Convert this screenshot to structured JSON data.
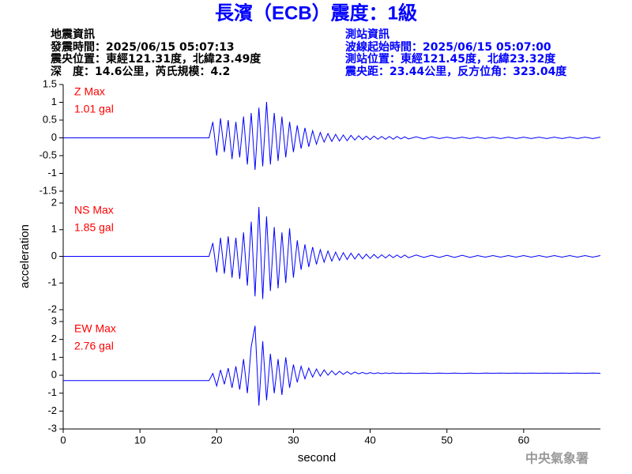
{
  "header": {
    "title": "長濱（ECB）震度：1級",
    "left": [
      "地震資訊",
      "發震時間：2025/06/15 05:07:13",
      "震央位置：東經121.31度，北緯23.49度",
      "深　度：14.6公里，芮氏規模：4.2"
    ],
    "right": [
      "測站資訊",
      "波線起始時間：2025/06/15 05:07:00",
      "測站位置：東經121.45度，北緯23.32度",
      "震央距：23.44公里，反方位角：323.04度"
    ]
  },
  "footer": "中央氣象署",
  "chart_data": [
    {
      "type": "line",
      "annotations": [
        "Z Max",
        "1.01 gal"
      ],
      "color": "#0000ff",
      "xlim": [
        0,
        70
      ],
      "ylim": [
        -1.5,
        1.5
      ],
      "yticks": [
        -1.5,
        -1,
        -0.5,
        0,
        0.5,
        1,
        1.5
      ],
      "x": [
        0,
        10,
        19,
        19.5,
        20,
        20.5,
        21,
        21.5,
        22,
        22.5,
        23,
        23.5,
        24,
        24.5,
        25,
        25.5,
        26,
        26.5,
        27,
        27.5,
        28,
        28.5,
        29,
        29.5,
        30,
        30.5,
        31,
        31.5,
        32,
        32.5,
        33,
        33.5,
        34,
        34.5,
        35,
        35.5,
        36,
        36.5,
        37,
        37.5,
        38,
        38.5,
        39,
        39.5,
        40,
        40.5,
        41,
        41.5,
        42,
        42.5,
        43,
        43.5,
        44,
        44.5,
        45,
        46,
        47,
        48,
        49,
        50,
        51,
        52,
        53,
        54,
        55,
        56,
        57,
        58,
        59,
        60,
        61,
        62,
        63,
        64,
        65,
        66,
        67,
        68,
        69,
        70
      ],
      "values": [
        0,
        0,
        0,
        0.45,
        -0.5,
        0.55,
        -0.4,
        0.5,
        -0.6,
        0.45,
        -0.55,
        0.6,
        -0.75,
        0.7,
        -0.9,
        0.85,
        -0.8,
        1.01,
        -0.75,
        0.7,
        -0.65,
        0.6,
        -0.55,
        0.45,
        -0.4,
        0.35,
        -0.3,
        0.28,
        -0.25,
        0.2,
        -0.18,
        0.15,
        -0.12,
        0.12,
        -0.1,
        0.1,
        -0.09,
        0.08,
        -0.08,
        0.07,
        -0.06,
        0.06,
        -0.05,
        0.05,
        -0.05,
        0.05,
        -0.04,
        0.04,
        -0.04,
        0.04,
        -0.04,
        0.04,
        -0.03,
        0.03,
        -0.03,
        0.03,
        -0.03,
        0.03,
        -0.02,
        0.02,
        -0.02,
        0.02,
        -0.02,
        0.02,
        -0.02,
        0.02,
        -0.02,
        0.02,
        -0.02,
        0.02,
        -0.02,
        0.02,
        -0.02,
        0.02,
        -0.02,
        0.02,
        -0.02,
        0.02,
        -0.02,
        0.02
      ]
    },
    {
      "type": "line",
      "annotations": [
        "NS Max",
        "1.85 gal"
      ],
      "color": "#0000ff",
      "ylabel": "acceleration",
      "xlim": [
        0,
        70
      ],
      "ylim": [
        -2,
        2
      ],
      "yticks": [
        -2,
        -1,
        0,
        1,
        2
      ],
      "x": [
        0,
        10,
        19,
        19.5,
        20,
        20.5,
        21,
        21.5,
        22,
        22.5,
        23,
        23.5,
        24,
        24.5,
        25,
        25.5,
        26,
        26.5,
        27,
        27.5,
        28,
        28.5,
        29,
        29.5,
        30,
        30.5,
        31,
        31.5,
        32,
        32.5,
        33,
        33.5,
        34,
        34.5,
        35,
        35.5,
        36,
        36.5,
        37,
        37.5,
        38,
        38.5,
        39,
        39.5,
        40,
        40.5,
        41,
        41.5,
        42,
        42.5,
        43,
        43.5,
        44,
        44.5,
        45,
        46,
        47,
        48,
        49,
        50,
        51,
        52,
        53,
        54,
        55,
        56,
        57,
        58,
        59,
        60,
        61,
        62,
        63,
        64,
        65,
        66,
        67,
        68,
        69,
        70
      ],
      "values": [
        0,
        0,
        0,
        0.5,
        -0.6,
        0.7,
        -0.65,
        0.75,
        -0.8,
        0.7,
        -0.85,
        0.9,
        -1.1,
        1.3,
        -1.5,
        1.85,
        -1.6,
        1.5,
        -1.3,
        1.1,
        -1.2,
        0.9,
        -1.0,
        1.05,
        -0.8,
        0.6,
        -0.5,
        0.45,
        -0.4,
        0.35,
        -0.3,
        0.25,
        -0.22,
        0.2,
        -0.18,
        0.16,
        -0.15,
        0.14,
        -0.12,
        0.12,
        -0.1,
        0.1,
        -0.09,
        0.08,
        -0.08,
        0.07,
        -0.07,
        0.06,
        -0.06,
        0.06,
        -0.05,
        0.05,
        -0.05,
        0.05,
        -0.05,
        0.05,
        -0.04,
        0.04,
        -0.04,
        0.04,
        -0.04,
        0.04,
        -0.04,
        0.03,
        -0.03,
        0.03,
        -0.03,
        0.03,
        -0.03,
        0.03,
        -0.03,
        0.03,
        -0.03,
        0.03,
        -0.03,
        0.03,
        -0.03,
        0.03,
        -0.03,
        0.03
      ]
    },
    {
      "type": "line",
      "annotations": [
        "EW Max",
        "2.76 gal"
      ],
      "color": "#0000ff",
      "xlabel": "second",
      "xlim": [
        0,
        70
      ],
      "xticks": [
        0,
        10,
        20,
        30,
        40,
        50,
        60
      ],
      "ylim": [
        -3,
        3
      ],
      "yticks": [
        -3,
        -2,
        -1,
        0,
        1,
        2,
        3
      ],
      "x": [
        0,
        10,
        19,
        19.5,
        20,
        20.5,
        21,
        21.5,
        22,
        22.5,
        23,
        23.5,
        24,
        24.5,
        25,
        25.5,
        26,
        26.5,
        27,
        27.5,
        28,
        28.5,
        29,
        29.5,
        30,
        30.5,
        31,
        31.5,
        32,
        32.5,
        33,
        33.5,
        34,
        34.5,
        35,
        35.5,
        36,
        36.5,
        37,
        37.5,
        38,
        38.5,
        39,
        39.5,
        40,
        40.5,
        41,
        41.5,
        42,
        42.5,
        43,
        43.5,
        44,
        44.5,
        45,
        46,
        47,
        48,
        49,
        50,
        51,
        52,
        53,
        54,
        55,
        56,
        57,
        58,
        59,
        60,
        61,
        62,
        63,
        64,
        65,
        66,
        67,
        68,
        69,
        70
      ],
      "values": [
        -0.3,
        -0.3,
        -0.3,
        0.1,
        -0.6,
        0.3,
        -0.5,
        0.4,
        -0.7,
        0.5,
        -0.8,
        0.9,
        -1.0,
        1.6,
        2.76,
        -1.7,
        1.9,
        -1.4,
        1.2,
        -1.0,
        0.9,
        -1.1,
        1.0,
        -0.7,
        0.6,
        -0.4,
        0.5,
        -0.2,
        0.4,
        -0.1,
        0.35,
        -0.05,
        0.3,
        0,
        0.25,
        0.02,
        0.22,
        0.05,
        0.2,
        0.06,
        0.18,
        0.08,
        0.16,
        0.08,
        0.15,
        0.09,
        0.14,
        0.09,
        0.13,
        0.1,
        0.13,
        0.1,
        0.12,
        0.1,
        0.12,
        0.1,
        0.12,
        0.1,
        0.12,
        0.1,
        0.12,
        0.1,
        0.12,
        0.1,
        0.12,
        0.11,
        0.12,
        0.11,
        0.12,
        0.11,
        0.12,
        0.11,
        0.12,
        0.11,
        0.12,
        0.11,
        0.12,
        0.11,
        0.12,
        0.11
      ]
    }
  ]
}
